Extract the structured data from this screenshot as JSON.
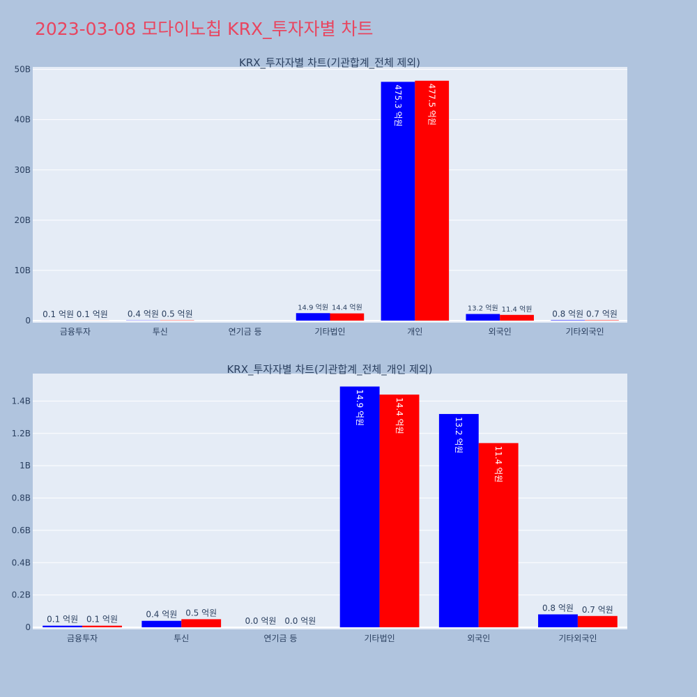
{
  "page_title": "2023-03-08 모다이노칩 KRX_투자자별 차트",
  "colors": {
    "background": "#b0c4de",
    "plot_bg": "#e5ecf6",
    "series_a": "#0000ff",
    "series_b": "#ff0000",
    "title": "#e8455f",
    "text": "#2a3f5f"
  },
  "chart_data": [
    {
      "type": "bar",
      "title": "KRX_투자자별 차트(기관합계_전체 제외)",
      "categories": [
        "금융투자",
        "투신",
        "연기금 등",
        "기타법인",
        "개인",
        "외국인",
        "기타외국인"
      ],
      "series": [
        {
          "values": [
            10000000.0,
            40000000.0,
            0,
            1490000000.0,
            47530000000.0,
            1320000000.0,
            80000000.0
          ],
          "labels": [
            "0.1 억원",
            "0.4 억원",
            "",
            "14.9 억원",
            "475.3 억원",
            "13.2 억원",
            "0.8 억원"
          ]
        },
        {
          "values": [
            10000000.0,
            50000000.0,
            0,
            1440000000.0,
            47750000000.0,
            1140000000.0,
            70000000.0
          ],
          "labels": [
            "0.1 억원",
            "0.5 억원",
            "",
            "14.4 억원",
            "477.5 억원",
            "11.4 억원",
            "0.7 억원"
          ]
        }
      ],
      "yticks": [
        0,
        10000000000.0,
        20000000000.0,
        30000000000.0,
        40000000000.0,
        50000000000.0
      ],
      "ytick_labels": [
        "0",
        "10B",
        "20B",
        "30B",
        "40B",
        "50B"
      ],
      "ylim": [
        0,
        50500000000.0
      ],
      "grid": true
    },
    {
      "type": "bar",
      "title": "KRX_투자자별 차트(기관합계_전체_개인 제외)",
      "categories": [
        "금융투자",
        "투신",
        "연기금 등",
        "기타법인",
        "외국인",
        "기타외국인"
      ],
      "series": [
        {
          "values": [
            10000000.0,
            40000000.0,
            0,
            1490000000.0,
            1320000000.0,
            80000000.0
          ],
          "labels": [
            "0.1 억원",
            "0.4 억원",
            "0.0 억원",
            "14.9 억원",
            "13.2 억원",
            "0.8 억원"
          ]
        },
        {
          "values": [
            10000000.0,
            50000000.0,
            0,
            1440000000.0,
            1140000000.0,
            70000000.0
          ],
          "labels": [
            "0.1 억원",
            "0.5 억원",
            "0.0 억원",
            "14.4 억원",
            "11.4 억원",
            "0.7 억원"
          ]
        }
      ],
      "yticks": [
        0,
        200000000.0,
        400000000.0,
        600000000.0,
        800000000.0,
        1000000000.0,
        1200000000.0,
        1400000000.0
      ],
      "ytick_labels": [
        "0",
        "0.2B",
        "0.4B",
        "0.6B",
        "0.8B",
        "1B",
        "1.2B",
        "1.4B"
      ],
      "ylim": [
        0,
        1570000000.0
      ],
      "grid": true
    }
  ]
}
